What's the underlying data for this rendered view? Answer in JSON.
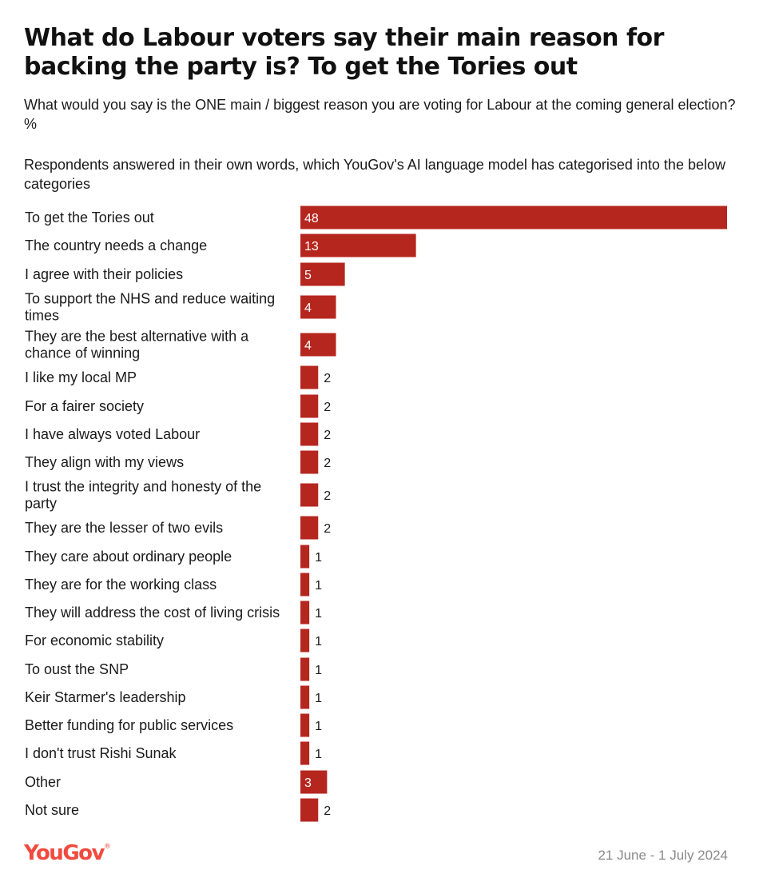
{
  "chart_data": {
    "type": "bar",
    "orientation": "horizontal",
    "title": "What do Labour voters say their main reason for backing the party is? To get the Tories out",
    "subtitle": "What would you say is the ONE main / biggest reason you are voting for Labour at the coming general election? %",
    "note": "Respondents answered in their own words, which YouGov's AI language model has categorised into the below categories",
    "unit": "%",
    "bar_color": "#b5261e",
    "grid": false,
    "xlim": [
      0,
      48
    ],
    "categories": [
      "To get the Tories out",
      "The country needs a change",
      "I agree with their policies",
      "To support the NHS and reduce waiting times",
      "They are the best alternative with a chance of winning",
      "I like my local MP",
      "For a fairer society",
      "I have always voted Labour",
      "They align with my views",
      "I trust the integrity and honesty of the party",
      "They are the lesser of two evils",
      "They care about ordinary people",
      "They are for the working class",
      "They will address the cost of living crisis",
      "For economic stability",
      "To oust the SNP",
      "Keir Starmer's leadership",
      "Better funding for public services",
      "I don't trust Rishi Sunak",
      "Other",
      "Not sure"
    ],
    "values": [
      48,
      13,
      5,
      4,
      4,
      2,
      2,
      2,
      2,
      2,
      2,
      1,
      1,
      1,
      1,
      1,
      1,
      1,
      1,
      3,
      2
    ]
  },
  "footer": {
    "brand": "YouGov",
    "brand_mark": "®",
    "dates": "21 June - 1 July 2024"
  }
}
